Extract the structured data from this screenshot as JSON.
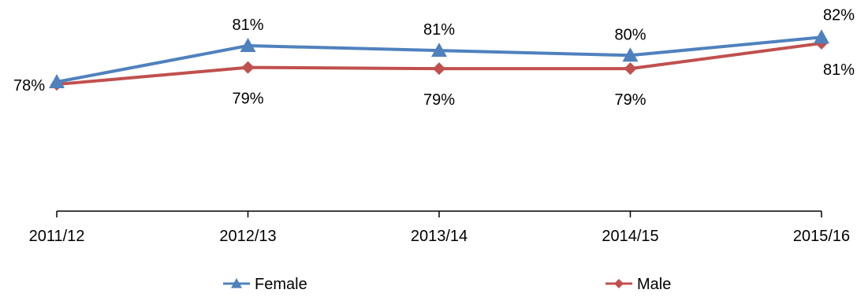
{
  "chart_data": {
    "type": "line",
    "categories": [
      "2011/12",
      "2012/13",
      "2013/14",
      "2014/15",
      "2015/16"
    ],
    "series": [
      {
        "name": "Female",
        "values": [
          78,
          81,
          80.6,
          80.2,
          81.7
        ],
        "labels": [
          "",
          "81%",
          "81%",
          "80%",
          "82%"
        ],
        "color": "#4F81BD",
        "marker": "triangle"
      },
      {
        "name": "Male",
        "values": [
          77.8,
          79.2,
          79.1,
          79.1,
          81.2
        ],
        "labels": [
          "78%",
          "79%",
          "79%",
          "79%",
          "81%"
        ],
        "color": "#C0504D",
        "marker": "diamond"
      }
    ],
    "title": "",
    "xlabel": "",
    "ylabel": "",
    "ylim": [
      70,
      83
    ],
    "grid": false,
    "legend": "bottom"
  }
}
